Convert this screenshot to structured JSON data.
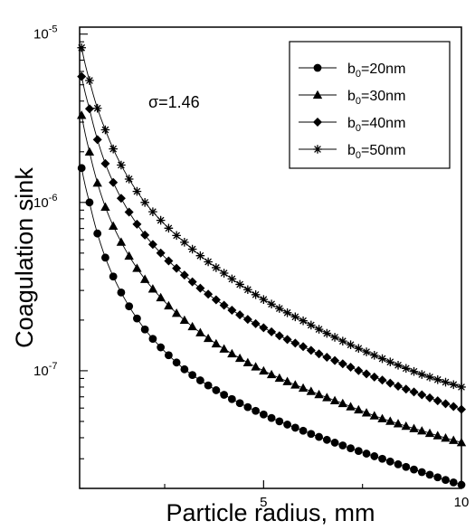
{
  "chart_data": {
    "type": "scatter",
    "x_scale": "linear",
    "y_scale": "log",
    "xlim": [
      0.35,
      10
    ],
    "ylim": [
      2e-08,
      1.1e-05
    ],
    "xlabel": "Particle radius, mm",
    "ylabel": "Coagulation  sink",
    "x_ticks": [
      {
        "value": 5,
        "label": "5"
      },
      {
        "value": 10,
        "label": "10"
      }
    ],
    "x_minor_ticks": [
      2.5,
      7.5
    ],
    "y_ticks": [
      {
        "value": 1e-07,
        "base": "10",
        "exp": "-7"
      },
      {
        "value": 1e-06,
        "base": "10",
        "exp": "-6"
      },
      {
        "value": 1e-05,
        "base": "10",
        "exp": "-5"
      }
    ],
    "annotation": "σ=1.46",
    "legend_position": "top-right",
    "series": [
      {
        "name": "b0=20nm",
        "label_base": "b",
        "label_sub": "0",
        "label_rest": "=20nm",
        "marker": "circle",
        "x": [
          0.4,
          0.6,
          1.0,
          2.0,
          3.0,
          4.0,
          5.0,
          6.0,
          7.0,
          8.0,
          9.0,
          10.0
        ],
        "y": [
          1.6e-06,
          1e-06,
          4.7e-07,
          1.76e-07,
          1.02e-07,
          7.2e-08,
          5.5e-08,
          4.4e-08,
          3.6e-08,
          3e-08,
          2.5e-08,
          2.1e-08
        ]
      },
      {
        "name": "b0=30nm",
        "label_base": "b",
        "label_sub": "0",
        "label_rest": "=30nm",
        "marker": "triangle",
        "x": [
          0.4,
          0.6,
          1.0,
          2.0,
          3.0,
          4.0,
          5.0,
          6.0,
          7.0,
          8.0,
          9.0,
          10.0
        ],
        "y": [
          3.3e-06,
          2e-06,
          9.4e-07,
          3.5e-07,
          2e-07,
          1.35e-07,
          1e-07,
          7.9e-08,
          6.4e-08,
          5.2e-08,
          4.4e-08,
          3.75e-08
        ]
      },
      {
        "name": "b0=40nm",
        "label_base": "b",
        "label_sub": "0",
        "label_rest": "=40nm",
        "marker": "diamond",
        "x": [
          0.4,
          0.6,
          1.0,
          2.0,
          3.0,
          4.0,
          5.0,
          6.0,
          7.0,
          8.0,
          9.0,
          10.0
        ],
        "y": [
          5.6e-06,
          3.6e-06,
          1.7e-06,
          6.4e-07,
          3.7e-07,
          2.45e-07,
          1.8e-07,
          1.39e-07,
          1.1e-07,
          8.8e-08,
          7.2e-08,
          5.9e-08
        ]
      },
      {
        "name": "b0=50nm",
        "label_base": "b",
        "label_sub": "0",
        "label_rest": "=50nm",
        "marker": "star",
        "x": [
          0.4,
          0.6,
          1.0,
          2.0,
          3.0,
          4.0,
          5.0,
          6.0,
          7.0,
          8.0,
          9.0,
          10.0
        ],
        "y": [
          8.3e-06,
          5.3e-06,
          2.7e-06,
          1e-06,
          5.8e-07,
          3.8e-07,
          2.65e-07,
          1.98e-07,
          1.5e-07,
          1.18e-07,
          9.5e-08,
          8e-08
        ]
      }
    ]
  }
}
